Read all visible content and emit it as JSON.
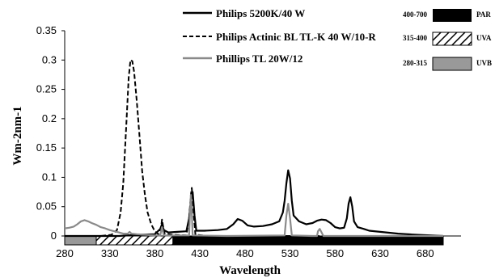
{
  "chart_data": {
    "type": "line",
    "title": "",
    "xlabel": "Wavelength",
    "ylabel": "Wm-2nm-1",
    "xlim": [
      280,
      700
    ],
    "ylim": [
      0,
      0.35
    ],
    "x_ticks": [
      "280",
      "330",
      "380",
      "430",
      "480",
      "530",
      "580",
      "630",
      "680"
    ],
    "y_ticks": [
      "0",
      "0.05",
      "0.1",
      "0.15",
      "0.2",
      "0.25",
      "0.3",
      "0.35"
    ],
    "grid": false,
    "legend_position": "top-center",
    "series": [
      {
        "name": "Philips 5200K/40 W",
        "style": "solid",
        "color": "#000000",
        "points": [
          [
            280,
            0
          ],
          [
            340,
            0
          ],
          [
            360,
            0.002
          ],
          [
            380,
            0.003
          ],
          [
            386,
            0.012
          ],
          [
            388,
            0.02
          ],
          [
            390,
            0.01
          ],
          [
            395,
            0.006
          ],
          [
            405,
            0.007
          ],
          [
            415,
            0.008
          ],
          [
            418,
            0.03
          ],
          [
            420,
            0.06
          ],
          [
            422,
            0.075
          ],
          [
            424,
            0.035
          ],
          [
            426,
            0.009
          ],
          [
            435,
            0.009
          ],
          [
            450,
            0.01
          ],
          [
            460,
            0.012
          ],
          [
            467,
            0.02
          ],
          [
            472,
            0.029
          ],
          [
            477,
            0.026
          ],
          [
            483,
            0.018
          ],
          [
            490,
            0.016
          ],
          [
            500,
            0.017
          ],
          [
            510,
            0.02
          ],
          [
            518,
            0.025
          ],
          [
            522,
            0.04
          ],
          [
            524,
            0.06
          ],
          [
            526,
            0.09
          ],
          [
            528,
            0.112
          ],
          [
            530,
            0.098
          ],
          [
            532,
            0.06
          ],
          [
            534,
            0.035
          ],
          [
            540,
            0.025
          ],
          [
            548,
            0.02
          ],
          [
            555,
            0.022
          ],
          [
            560,
            0.026
          ],
          [
            565,
            0.028
          ],
          [
            570,
            0.027
          ],
          [
            575,
            0.022
          ],
          [
            580,
            0.015
          ],
          [
            585,
            0.013
          ],
          [
            590,
            0.014
          ],
          [
            593,
            0.03
          ],
          [
            595,
            0.055
          ],
          [
            597,
            0.066
          ],
          [
            599,
            0.05
          ],
          [
            601,
            0.025
          ],
          [
            605,
            0.015
          ],
          [
            612,
            0.012
          ],
          [
            618,
            0.009
          ],
          [
            630,
            0.007
          ],
          [
            650,
            0.004
          ],
          [
            670,
            0.002
          ],
          [
            700,
            0
          ]
        ]
      },
      {
        "name": "Philips Actinic BL TL-K 40 W/10-R",
        "style": "dashed",
        "color": "#000000",
        "points": [
          [
            280,
            0
          ],
          [
            320,
            0
          ],
          [
            332,
            0.002
          ],
          [
            338,
            0.01
          ],
          [
            342,
            0.04
          ],
          [
            345,
            0.09
          ],
          [
            348,
            0.18
          ],
          [
            351,
            0.27
          ],
          [
            353,
            0.3
          ],
          [
            355,
            0.298
          ],
          [
            357,
            0.28
          ],
          [
            360,
            0.23
          ],
          [
            363,
            0.17
          ],
          [
            366,
            0.11
          ],
          [
            369,
            0.07
          ],
          [
            372,
            0.04
          ],
          [
            376,
            0.02
          ],
          [
            380,
            0.008
          ],
          [
            384,
            0.003
          ],
          [
            387,
            0.015
          ],
          [
            388,
            0.028
          ],
          [
            389,
            0.018
          ],
          [
            391,
            0.004
          ],
          [
            400,
            0.002
          ],
          [
            415,
            0.001
          ],
          [
            418,
            0.03
          ],
          [
            420,
            0.07
          ],
          [
            421,
            0.082
          ],
          [
            423,
            0.04
          ],
          [
            425,
            0.002
          ],
          [
            440,
            0
          ],
          [
            700,
            0
          ]
        ]
      },
      {
        "name": "Phillips TL 20W/12",
        "style": "solid",
        "color": "#8a8a8a",
        "points": [
          [
            280,
            0.013
          ],
          [
            285,
            0.014
          ],
          [
            290,
            0.016
          ],
          [
            294,
            0.02
          ],
          [
            298,
            0.025
          ],
          [
            302,
            0.027
          ],
          [
            306,
            0.025
          ],
          [
            310,
            0.022
          ],
          [
            315,
            0.019
          ],
          [
            320,
            0.015
          ],
          [
            325,
            0.013
          ],
          [
            330,
            0.01
          ],
          [
            335,
            0.008
          ],
          [
            340,
            0.006
          ],
          [
            345,
            0.004
          ],
          [
            350,
            0.004
          ],
          [
            352,
            0.007
          ],
          [
            354,
            0.004
          ],
          [
            360,
            0.003
          ],
          [
            370,
            0.002
          ],
          [
            380,
            0.001
          ],
          [
            386,
            0.001
          ],
          [
            388,
            0.015
          ],
          [
            390,
            0.001
          ],
          [
            418,
            0.001
          ],
          [
            419,
            0.04
          ],
          [
            420,
            0.07
          ],
          [
            421,
            0.04
          ],
          [
            422,
            0.001
          ],
          [
            460,
            0
          ],
          [
            524,
            0.001
          ],
          [
            526,
            0.035
          ],
          [
            528,
            0.055
          ],
          [
            530,
            0.03
          ],
          [
            532,
            0.001
          ],
          [
            555,
            0
          ],
          [
            560,
            0
          ],
          [
            561,
            0.008
          ],
          [
            563,
            0.012
          ],
          [
            565,
            0.006
          ],
          [
            567,
            0
          ],
          [
            700,
            0
          ]
        ]
      }
    ],
    "bands": [
      {
        "range": "400-700",
        "label": "PAR",
        "fill": "solid-black",
        "start": 400,
        "end": 700
      },
      {
        "range": "315-400",
        "label": "UVA",
        "fill": "hatched",
        "start": 315,
        "end": 400
      },
      {
        "range": "280-315",
        "label": "UVB",
        "fill": "gray",
        "start": 280,
        "end": 315
      }
    ]
  }
}
